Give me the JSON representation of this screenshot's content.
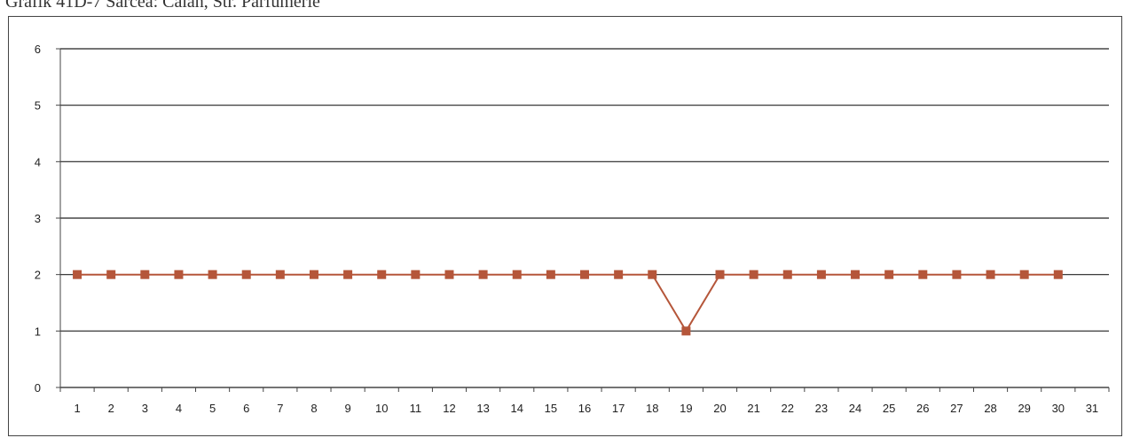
{
  "caption": "Grafik 41D-7 Sarcea: Calan, Str. Parfumerie",
  "colors": {
    "series": "#b5563a",
    "marker": "#b5563a",
    "grid": "#222222",
    "axis": "#444444"
  },
  "chart_data": {
    "type": "line",
    "title": "",
    "xlabel": "",
    "ylabel": "",
    "ylim": [
      0,
      6
    ],
    "yticks": [
      0,
      1,
      2,
      3,
      4,
      5,
      6
    ],
    "categories": [
      "1",
      "2",
      "3",
      "4",
      "5",
      "6",
      "7",
      "8",
      "9",
      "10",
      "11",
      "12",
      "13",
      "14",
      "15",
      "16",
      "17",
      "18",
      "19",
      "20",
      "21",
      "22",
      "23",
      "24",
      "25",
      "26",
      "27",
      "28",
      "29",
      "30",
      "31"
    ],
    "grid": "horizontal",
    "legend": "none",
    "series": [
      {
        "marker": "square",
        "values": [
          2,
          2,
          2,
          2,
          2,
          2,
          2,
          2,
          2,
          2,
          2,
          2,
          2,
          2,
          2,
          2,
          2,
          2,
          1,
          2,
          2,
          2,
          2,
          2,
          2,
          2,
          2,
          2,
          2,
          2,
          null
        ]
      }
    ]
  }
}
